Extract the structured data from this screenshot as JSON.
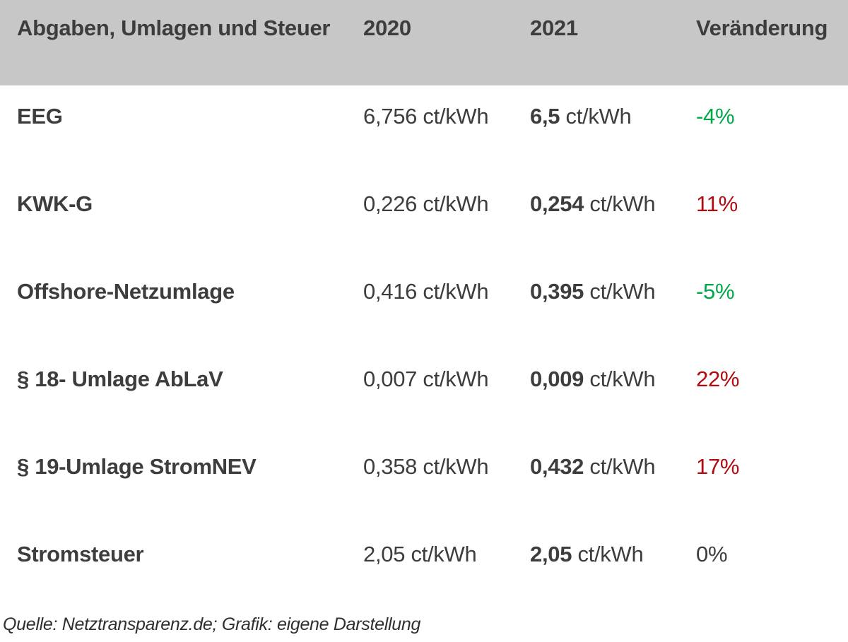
{
  "colors": {
    "header_bg": "#c7c7c7",
    "text": "#3d3d3d",
    "increase_red": "#b00b10",
    "decrease_green": "#00a84a"
  },
  "table": {
    "unit": "ct/kWh",
    "header": {
      "title": "Abgaben, Umlagen und Steuer",
      "col_2020": "2020",
      "col_2021": "2021",
      "col_change": "Veränderung"
    },
    "rows": [
      {
        "label": "EEG",
        "v2020": "6,756",
        "v2021": "6,5",
        "change": "-4%",
        "trend": "down"
      },
      {
        "label": "KWK-G",
        "v2020": "0,226",
        "v2021": "0,254",
        "change": "11%",
        "trend": "up"
      },
      {
        "label": "Offshore-Netzumlage",
        "v2020": "0,416",
        "v2021": "0,395",
        "change": "-5%",
        "trend": "down"
      },
      {
        "label": "§ 18- Umlage AbLaV",
        "v2020": "0,007",
        "v2021": "0,009",
        "change": "22%",
        "trend": "up"
      },
      {
        "label": "§ 19-Umlage StromNEV",
        "v2020": "0,358",
        "v2021": "0,432",
        "change": "17%",
        "trend": "up"
      },
      {
        "label": "Stromsteuer",
        "v2020": "2,05",
        "v2021": "2,05",
        "change": "0%",
        "trend": "flat"
      }
    ]
  },
  "footer": {
    "source": "Quelle: Netztransparenz.de; Grafik: eigene Darstellung"
  },
  "chart_data": {
    "type": "table",
    "title": "Abgaben, Umlagen und Steuer",
    "columns": [
      "Abgaben, Umlagen und Steuer",
      "2020",
      "2021",
      "Veränderung"
    ],
    "unit": "ct/kWh",
    "categories": [
      "EEG",
      "KWK-G",
      "Offshore-Netzumlage",
      "§ 18- Umlage AbLaV",
      "§ 19-Umlage StromNEV",
      "Stromsteuer"
    ],
    "series": [
      {
        "name": "2020",
        "values": [
          6.756,
          0.226,
          0.416,
          0.007,
          0.358,
          2.05
        ]
      },
      {
        "name": "2021",
        "values": [
          6.5,
          0.254,
          0.395,
          0.009,
          0.432,
          2.05
        ]
      },
      {
        "name": "Veränderung",
        "values": [
          "-4%",
          "11%",
          "-5%",
          "22%",
          "17%",
          "0%"
        ]
      }
    ],
    "source": "Quelle: Netztransparenz.de; Grafik: eigene Darstellung"
  }
}
